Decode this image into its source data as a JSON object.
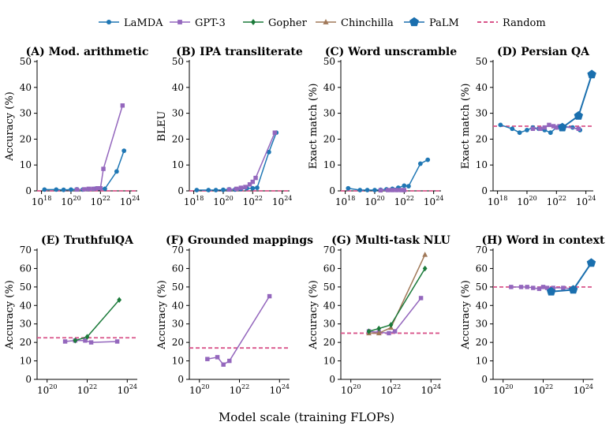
{
  "legend": [
    {
      "key": "lamda",
      "name": "LaMDA",
      "color": "#1f77b4",
      "marker": "circle"
    },
    {
      "key": "gpt3",
      "name": "GPT-3",
      "color": "#9467bd",
      "marker": "square"
    },
    {
      "key": "gopher",
      "name": "Gopher",
      "color": "#1b7a3a",
      "marker": "diamond"
    },
    {
      "key": "chinchilla",
      "name": "Chinchilla",
      "color": "#a07858",
      "marker": "triangle"
    },
    {
      "key": "palm",
      "name": "PaLM",
      "color": "#1a6fae",
      "marker": "pentagon"
    },
    {
      "key": "random",
      "name": "Random",
      "color": "#d9548a",
      "marker": "dash"
    }
  ],
  "global_xlabel": "Model scale (training FLOPs)",
  "chart_data": [
    {
      "type": "line",
      "title": "(A) Mod. arithmetic",
      "ylabel": "Accuracy (%)",
      "ylim": [
        0,
        50
      ],
      "yticks": [
        0,
        10,
        20,
        30,
        40,
        50
      ],
      "xlim": [
        17.7,
        24.5
      ],
      "xticks": [
        18,
        20,
        22,
        24
      ],
      "random": 0,
      "series": [
        {
          "key": "lamda",
          "x": [
            18.2,
            19.0,
            19.5,
            20.0,
            20.4,
            20.8,
            21.2,
            21.6,
            22.0,
            22.3,
            23.1,
            23.6
          ],
          "y": [
            0.5,
            0.5,
            0.4,
            0.5,
            0.6,
            0.5,
            0.7,
            0.8,
            1.0,
            0.8,
            7.5,
            15.5
          ]
        },
        {
          "key": "gpt3",
          "x": [
            20.4,
            20.9,
            21.2,
            21.5,
            21.8,
            22.0,
            22.2,
            23.5
          ],
          "y": [
            0.5,
            0.6,
            0.8,
            0.8,
            1.0,
            1.0,
            8.5,
            33
          ]
        }
      ]
    },
    {
      "type": "line",
      "title": "(B) IPA transliterate",
      "ylabel": "BLEU",
      "ylim": [
        0,
        50
      ],
      "yticks": [
        0,
        10,
        20,
        30,
        40,
        50
      ],
      "xlim": [
        17.7,
        24.5
      ],
      "xticks": [
        18,
        20,
        22,
        24
      ],
      "random": 0,
      "series": [
        {
          "key": "lamda",
          "x": [
            18.2,
            19.0,
            19.5,
            20.0,
            20.4,
            20.8,
            21.2,
            21.6,
            22.0,
            22.3,
            23.1,
            23.6
          ],
          "y": [
            0.3,
            0.3,
            0.3,
            0.4,
            0.6,
            0.5,
            0.7,
            1.0,
            1.0,
            1.2,
            15.0,
            22.5
          ]
        },
        {
          "key": "gpt3",
          "x": [
            20.4,
            20.9,
            21.2,
            21.5,
            21.8,
            22.0,
            22.2,
            23.5
          ],
          "y": [
            0.5,
            0.8,
            1.2,
            1.5,
            2.5,
            3.5,
            5.0,
            22.5
          ]
        }
      ]
    },
    {
      "type": "line",
      "title": "(C) Word unscramble",
      "ylabel": "Exact match (%)",
      "ylim": [
        0,
        50
      ],
      "yticks": [
        0,
        10,
        20,
        30,
        40,
        50
      ],
      "xlim": [
        17.7,
        24.5
      ],
      "xticks": [
        18,
        20,
        22,
        24
      ],
      "random": 0,
      "series": [
        {
          "key": "lamda",
          "x": [
            18.2,
            19.0,
            19.5,
            20.0,
            20.4,
            20.8,
            21.2,
            21.6,
            22.0,
            22.3,
            23.1,
            23.6
          ],
          "y": [
            1.0,
            0.3,
            0.3,
            0.3,
            0.4,
            0.6,
            0.8,
            1.2,
            2.0,
            1.8,
            10.5,
            12.0
          ]
        },
        {
          "key": "gpt3",
          "x": [
            20.4,
            20.9,
            21.2,
            21.5,
            21.8,
            22.0
          ],
          "y": [
            0.2,
            0.3,
            0.3,
            0.3,
            0.3,
            0.3
          ]
        }
      ]
    },
    {
      "type": "line",
      "title": "(D) Persian QA",
      "ylabel": "Exact match (%)",
      "ylim": [
        0,
        50
      ],
      "yticks": [
        0,
        10,
        20,
        30,
        40,
        50
      ],
      "xlim": [
        17.7,
        24.5
      ],
      "xticks": [
        18,
        20,
        22,
        24
      ],
      "random": 25,
      "series": [
        {
          "key": "lamda",
          "x": [
            18.2,
            19.0,
            19.5,
            20.0,
            20.4,
            20.8,
            21.2,
            21.6,
            22.0,
            22.3,
            23.1,
            23.6
          ],
          "y": [
            25.5,
            24,
            22.5,
            23.5,
            24.5,
            24,
            23.5,
            22.5,
            24.5,
            25,
            24.5,
            23.5
          ]
        },
        {
          "key": "gpt3",
          "x": [
            20.4,
            20.9,
            21.2,
            21.5,
            21.8,
            22.0,
            22.2,
            23.5
          ],
          "y": [
            24,
            24,
            24.5,
            25.5,
            25,
            24.5,
            25,
            24
          ]
        },
        {
          "key": "palm",
          "x": [
            22.4,
            23.5,
            24.4
          ],
          "y": [
            24.5,
            29,
            45
          ]
        }
      ]
    },
    {
      "type": "line",
      "title": "(E) TruthfulQA",
      "ylabel": "Accuracy (%)",
      "ylim": [
        0,
        70
      ],
      "yticks": [
        0,
        10,
        20,
        30,
        40,
        50,
        60,
        70
      ],
      "xlim": [
        19.5,
        24.5
      ],
      "xticks": [
        20,
        22,
        24
      ],
      "random": 22.5,
      "series": [
        {
          "key": "gpt3",
          "x": [
            20.9,
            21.4,
            21.9,
            22.2,
            23.5
          ],
          "y": [
            20.5,
            21,
            21,
            20,
            20.5
          ]
        },
        {
          "key": "gopher",
          "x": [
            21.4,
            22.0,
            23.6
          ],
          "y": [
            21,
            23,
            43
          ]
        }
      ]
    },
    {
      "type": "line",
      "title": "(F) Grounded mappings",
      "ylabel": "Accuracy (%)",
      "ylim": [
        0,
        70
      ],
      "yticks": [
        0,
        10,
        20,
        30,
        40,
        50,
        60,
        70
      ],
      "xlim": [
        19.5,
        24.5
      ],
      "xticks": [
        20,
        22,
        24
      ],
      "random": 17,
      "series": [
        {
          "key": "gpt3",
          "x": [
            20.4,
            20.9,
            21.2,
            21.5,
            23.5
          ],
          "y": [
            11,
            12,
            8,
            10,
            45
          ]
        }
      ]
    },
    {
      "type": "line",
      "title": "(G) Multi-task NLU",
      "ylabel": "Accuracy (%)",
      "ylim": [
        0,
        70
      ],
      "yticks": [
        0,
        10,
        20,
        30,
        40,
        50,
        60,
        70
      ],
      "xlim": [
        19.5,
        24.5
      ],
      "xticks": [
        20,
        22,
        24
      ],
      "random": 25,
      "series": [
        {
          "key": "gpt3",
          "x": [
            20.9,
            21.4,
            21.9,
            22.2,
            23.5
          ],
          "y": [
            26,
            25.5,
            25,
            26,
            44
          ]
        },
        {
          "key": "chinchilla",
          "x": [
            20.9,
            21.4,
            22.0,
            23.7
          ],
          "y": [
            25,
            25,
            28,
            67.5
          ]
        },
        {
          "key": "gopher",
          "x": [
            20.9,
            21.4,
            22.0,
            23.7
          ],
          "y": [
            26,
            27.5,
            29.5,
            60
          ]
        }
      ]
    },
    {
      "type": "line",
      "title": "(H) Word in context",
      "ylabel": "Accuracy (%)",
      "ylim": [
        0,
        70
      ],
      "yticks": [
        0,
        10,
        20,
        30,
        40,
        50,
        60,
        70
      ],
      "xlim": [
        19.5,
        24.5
      ],
      "xticks": [
        20,
        22,
        24
      ],
      "random": 50,
      "series": [
        {
          "key": "gpt3",
          "x": [
            20.4,
            20.9,
            21.2,
            21.5,
            21.8,
            22.0,
            22.2,
            22.5,
            23.0,
            23.5
          ],
          "y": [
            50,
            50,
            50,
            49.5,
            49,
            50,
            49.5,
            49.5,
            49.5,
            49
          ]
        },
        {
          "key": "palm",
          "x": [
            22.4,
            23.5,
            24.4
          ],
          "y": [
            47.5,
            48.5,
            63
          ]
        }
      ]
    }
  ]
}
